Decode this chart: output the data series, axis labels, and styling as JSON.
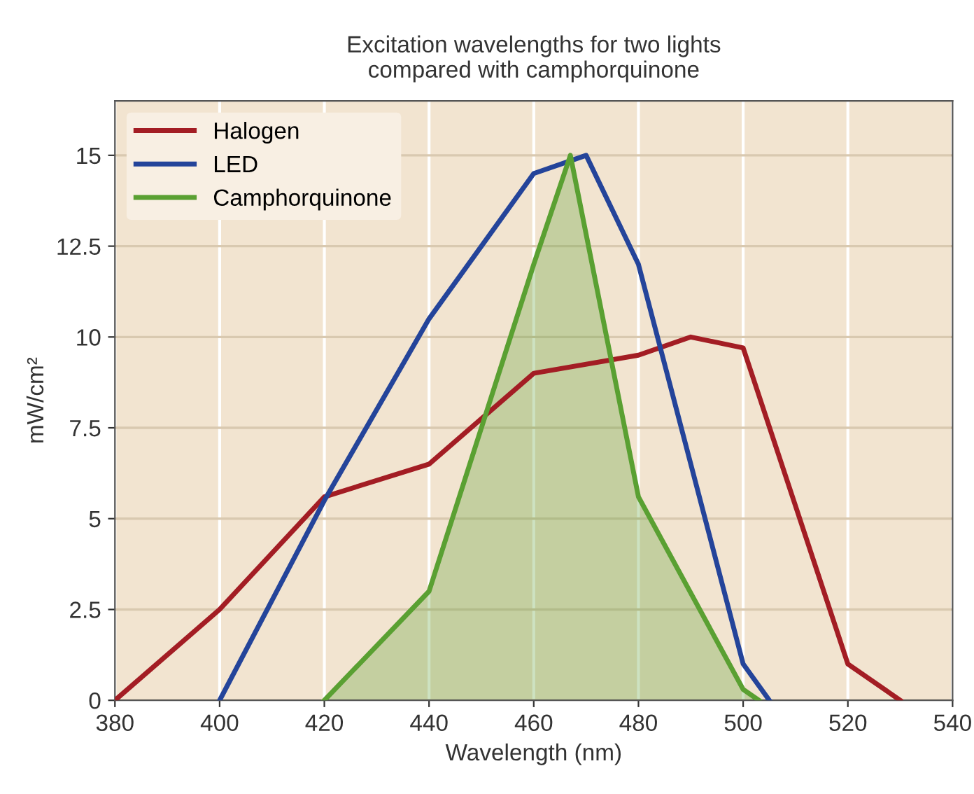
{
  "chart_data": {
    "type": "line",
    "title": "Excitation wavelengths for two lights\ncompared with camphorquinone",
    "xlabel": "Wavelength (nm)",
    "ylabel": "mW/cm²",
    "series": [
      {
        "name": "Halogen",
        "color": "#a31d24",
        "x": [
          380,
          400,
          420,
          440,
          460,
          480,
          490,
          500,
          520,
          530
        ],
        "values": [
          0,
          2.5,
          5.6,
          6.5,
          9,
          9.5,
          10,
          9.7,
          1,
          0
        ]
      },
      {
        "name": "LED",
        "color": "#24449a",
        "x": [
          400,
          420,
          440,
          460,
          470,
          480,
          500,
          505
        ],
        "values": [
          0,
          5.5,
          10.5,
          14.5,
          15,
          12,
          1,
          0
        ]
      },
      {
        "name": "Camphorquinone",
        "type": "area",
        "color": "#5aa032",
        "x": [
          420,
          440,
          460,
          467,
          480,
          500,
          503
        ],
        "values": [
          0,
          3,
          12,
          15,
          5.6,
          0.3,
          0
        ]
      }
    ],
    "xlim": [
      380,
      540
    ],
    "xticks": [
      380,
      400,
      420,
      440,
      460,
      480,
      500,
      520,
      540
    ],
    "ylim": [
      0,
      16.5
    ],
    "yticks": [
      0,
      2.5,
      5,
      7.5,
      10,
      12.5,
      15
    ],
    "grid": true,
    "legend": "top left"
  }
}
